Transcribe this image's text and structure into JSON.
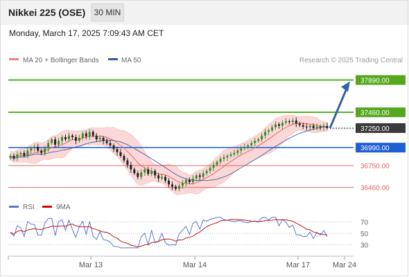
{
  "header": {
    "instrument": "Nikkei 225 (OSE)",
    "timeframe": "30 MIN"
  },
  "timestamp": "Monday, March 17, 2025 7:09:43 AM CET",
  "legend": {
    "bollinger": "MA 20 + Bollinger Bands",
    "ma50": "MA 50"
  },
  "credit": "Research © 2025 Trading Central",
  "colors": {
    "green": "#55a81e",
    "blue": "#1e5fd6",
    "red": "#e06666",
    "dark": "#3a3a3a",
    "arrow": "#2e63a4",
    "candle_up": "#3d8a30",
    "candle_down": "#222222",
    "ma20": "#e06a6a",
    "ma50": "#4a6ea8",
    "band_fill": "#fbd7d7",
    "rsi": "#5577cc",
    "rsi_ma": "#cc1111"
  },
  "chart_data": [
    {
      "type": "candlestick",
      "title": "",
      "ylim": [
        36300,
        38070
      ],
      "x_ticks": [
        "Mar 13",
        "Mar 14",
        "Mar 17",
        "Mar 24"
      ],
      "last_price": 37250,
      "levels": [
        {
          "value": 37890,
          "label": "37890.00",
          "style": "resistance",
          "color": "green"
        },
        {
          "value": 37460,
          "label": "37460.00",
          "style": "resistance",
          "color": "green"
        },
        {
          "value": 37250,
          "label": "37250.00",
          "style": "last",
          "color": "dark"
        },
        {
          "value": 36990,
          "label": "36990.00",
          "style": "pivot",
          "color": "blue"
        },
        {
          "value": 36750,
          "label": "36750.00",
          "style": "support",
          "color": "red"
        },
        {
          "value": 36460,
          "label": "36460.00",
          "style": "support",
          "color": "red"
        }
      ],
      "target_arrow": {
        "from": 37250,
        "to": 37890
      },
      "series_labels": [
        "MA 20 + Bollinger Bands",
        "MA 50"
      ],
      "closes": [
        36880,
        36850,
        36900,
        36920,
        36880,
        36950,
        36980,
        37000,
        36950,
        36920,
        36980,
        37050,
        37100,
        37030,
        37080,
        37130,
        37100,
        37150,
        37130,
        37080,
        37120,
        37180,
        37140,
        37200,
        37150,
        37100,
        37120,
        37080,
        37050,
        37020,
        36970,
        36930,
        36880,
        36820,
        36760,
        36700,
        36650,
        36600,
        36660,
        36700,
        36640,
        36680,
        36620,
        36580,
        36600,
        36550,
        36500,
        36470,
        36440,
        36480,
        36520,
        36560,
        36530,
        36580,
        36620,
        36600,
        36650,
        36680,
        36720,
        36760,
        36800,
        36840,
        36860,
        36880,
        36900,
        36920,
        36950,
        36980,
        37000,
        37020,
        37050,
        37080,
        37100,
        37150,
        37200,
        37220,
        37260,
        37300,
        37280,
        37320,
        37340,
        37330,
        37350,
        37310,
        37290,
        37270,
        37260,
        37280,
        37250,
        37270,
        37260,
        37280,
        37250
      ]
    },
    {
      "type": "line",
      "title": "",
      "series_labels": [
        "RSI",
        "9MA"
      ],
      "y_ticks": [
        70,
        50,
        30
      ],
      "ylim": [
        20,
        80
      ]
    }
  ]
}
